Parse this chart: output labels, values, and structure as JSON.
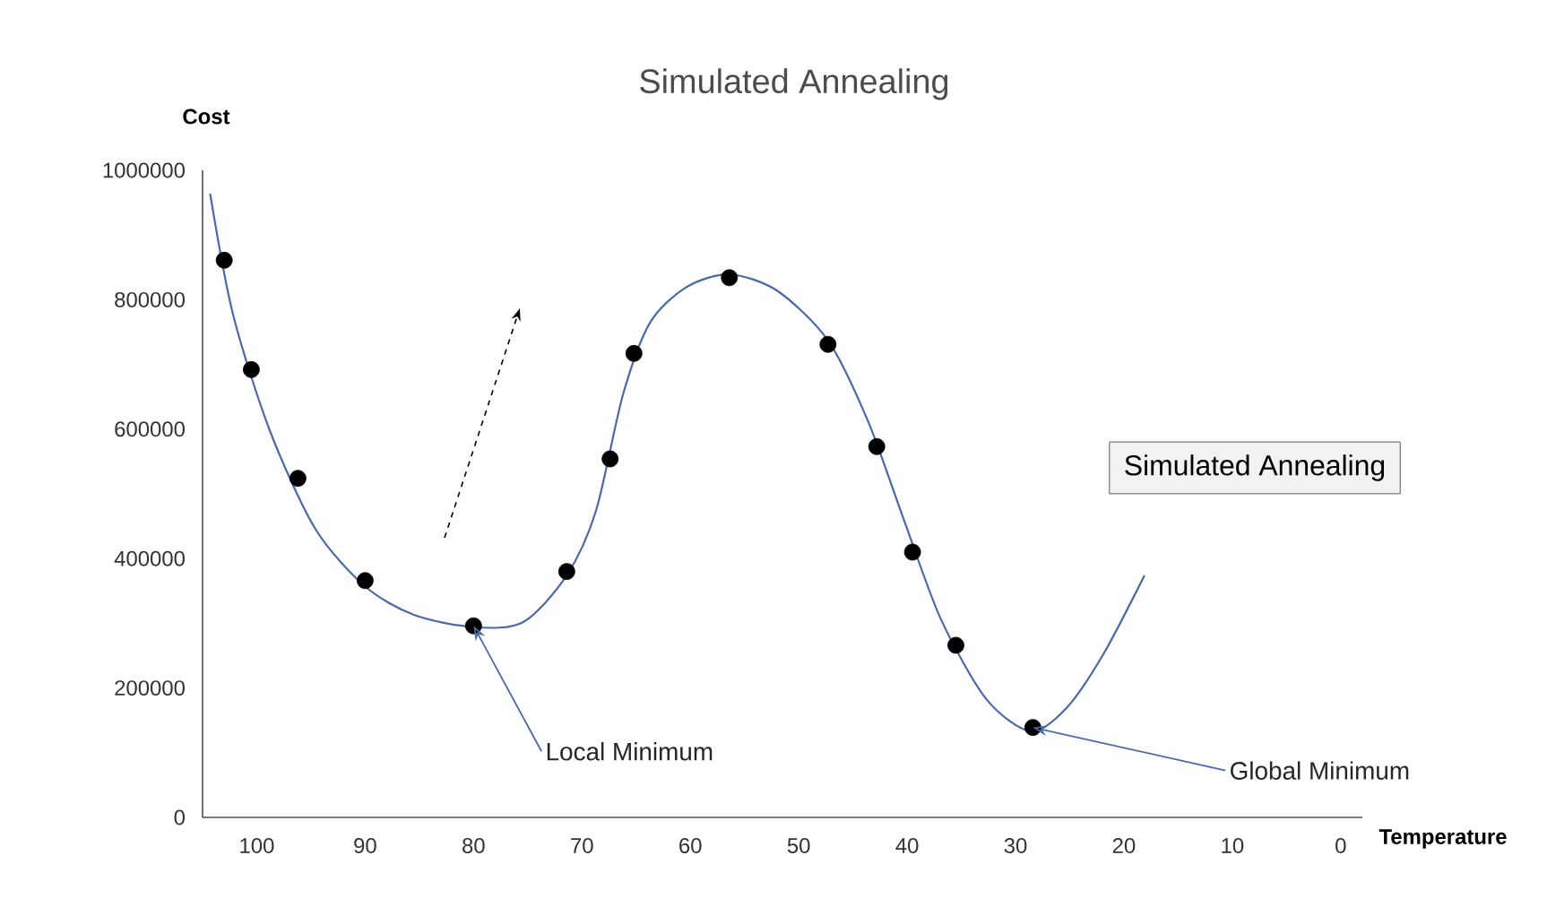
{
  "chart_data": {
    "type": "line",
    "title": "Simulated Annealing",
    "xlabel": "Temperature",
    "ylabel": "Cost",
    "xlim": [
      105,
      -2
    ],
    "xticks": [
      100,
      90,
      80,
      70,
      60,
      50,
      40,
      30,
      20,
      10,
      0
    ],
    "ylim": [
      0,
      1000000
    ],
    "yticks": [
      0,
      200000,
      400000,
      600000,
      800000,
      1000000
    ],
    "grid": false,
    "series": [
      {
        "color": "#4a6aa5",
        "marker": "none",
        "x": [
          104.3,
          102.2,
          98.8,
          94.6,
          90,
          85.5,
          80,
          75.4,
          71.4,
          68.7,
          66.2,
          63.7,
          60.3,
          56.4,
          52,
          47.3,
          43.6,
          40.3,
          36.9,
          32.7,
          28.6,
          25.3,
          21.9,
          18.1
        ],
        "values": [
          964000,
          778000,
          598000,
          446000,
          357000,
          313000,
          294000,
          302000,
          374000,
          474000,
          654000,
          765000,
          820000,
          839000,
          814000,
          737000,
          612000,
          460000,
          307000,
          183000,
          133000,
          169000,
          252000,
          374000
        ]
      },
      {
        "type": "scatter",
        "color": "#000000",
        "marker": "circle",
        "x": [
          103,
          100.5,
          96.2,
          90,
          80,
          71.4,
          67.4,
          65.2,
          56.4,
          47.3,
          42.8,
          39.5,
          35.5,
          28.4
        ],
        "values": [
          861000,
          692000,
          524000,
          366000,
          296000,
          380000,
          554000,
          717000,
          834000,
          731000,
          573000,
          410000,
          266000,
          139000
        ]
      }
    ],
    "annotations": [
      {
        "text": "Local Minimum",
        "x": 80,
        "y": 296000
      },
      {
        "text": "Global Minimum",
        "x": 28.4,
        "y": 139000
      },
      "Simulated Annealing"
    ]
  }
}
